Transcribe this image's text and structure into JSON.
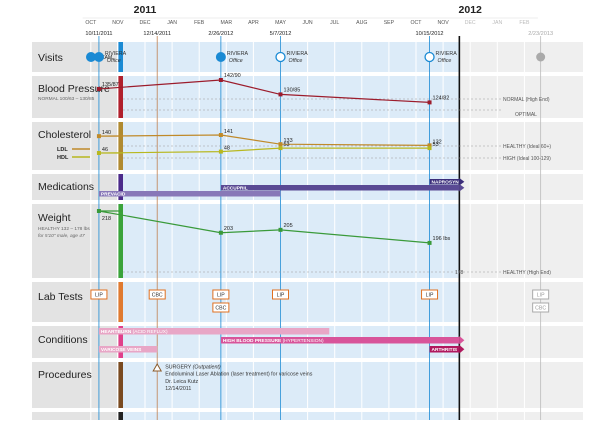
{
  "timeline": {
    "years": [
      {
        "label": "2011",
        "faded": false,
        "month": 0
      },
      {
        "label": "2012",
        "faded": false,
        "month": 12
      },
      {
        "label": "2013",
        "faded": true,
        "month": 24.3
      }
    ],
    "months": [
      {
        "label": "OCT",
        "m": -2
      },
      {
        "label": "NOV",
        "m": -1
      },
      {
        "label": "DEC",
        "m": 0
      },
      {
        "label": "JAN",
        "m": 1
      },
      {
        "label": "FEB",
        "m": 2
      },
      {
        "label": "MAR",
        "m": 3
      },
      {
        "label": "APR",
        "m": 4
      },
      {
        "label": "MAY",
        "m": 5
      },
      {
        "label": "JUN",
        "m": 6
      },
      {
        "label": "JUL",
        "m": 7
      },
      {
        "label": "AUG",
        "m": 8
      },
      {
        "label": "SEP",
        "m": 9
      },
      {
        "label": "OCT",
        "m": 10
      },
      {
        "label": "NOV",
        "m": 11
      },
      {
        "label": "DEC",
        "m": 12,
        "faded": true
      },
      {
        "label": "JAN",
        "m": 13,
        "faded": true
      },
      {
        "label": "FEB",
        "m": 14,
        "faded": true
      }
    ],
    "visit_dates": [
      {
        "label": "10/11/2011",
        "m": -1.7,
        "faded": false
      },
      {
        "label": "12/14/2011",
        "m": 0.45,
        "faded": false
      },
      {
        "label": "2/26/2012",
        "m": 2.8,
        "faded": false
      },
      {
        "label": "5/7/2012",
        "m": 5.0,
        "faded": false
      },
      {
        "label": "10/15/2012",
        "m": 10.5,
        "faded": false
      },
      {
        "label": "2/23/2013",
        "m": 14.6,
        "faded": true
      }
    ],
    "today_m": 11.6
  },
  "rows": {
    "visits": {
      "title": "Visits",
      "legend_label": "EXAM"
    },
    "bp": {
      "title": "Blood Pressure",
      "sub": "NORMAL 100/63 – 130/85"
    },
    "chol": {
      "title": "Cholesterol",
      "legend_ldl": "LDL",
      "legend_hdl": "HDL"
    },
    "meds": {
      "title": "Medications"
    },
    "weight": {
      "title": "Weight",
      "sub1": "HEALTHY 132 – 178 lbs",
      "sub2": "for 5'10\" male, age 47"
    },
    "lab": {
      "title": "Lab Tests"
    },
    "cond": {
      "title": "Conditions"
    },
    "proc": {
      "title": "Procedures"
    }
  },
  "visits": [
    {
      "m": -1.7,
      "type": "exam",
      "place": "RIVIERA",
      "sub": "Office"
    },
    {
      "m": 2.8,
      "type": "exam",
      "place": "RIVIERA",
      "sub": "Office"
    },
    {
      "m": 5.0,
      "type": "visit",
      "place": "RIVIERA",
      "sub": "Office"
    },
    {
      "m": 10.5,
      "type": "visit",
      "place": "RIVIERA",
      "sub": "Office"
    },
    {
      "m": 14.6,
      "type": "future"
    }
  ],
  "bp": {
    "points": [
      {
        "m": -1.7,
        "label": "135/87",
        "v": 0.72
      },
      {
        "m": 2.8,
        "label": "142/90",
        "v": 1.0
      },
      {
        "m": 5.0,
        "label": "130/85",
        "v": 0.55
      },
      {
        "m": 10.5,
        "label": "124/82",
        "v": 0.3
      }
    ],
    "ref_normal": "NORMAL (High End)",
    "ref_optimal": "OPTIMAL"
  },
  "chol": {
    "ldl": [
      {
        "m": -1.7,
        "label": "140",
        "v": 140
      },
      {
        "m": 2.8,
        "label": "141",
        "v": 141
      },
      {
        "m": 5.0,
        "label": "133",
        "v": 133
      },
      {
        "m": 10.5,
        "label": "132",
        "v": 132
      }
    ],
    "hdl": [
      {
        "m": -1.7,
        "label": "46",
        "v": 46
      },
      {
        "m": 2.8,
        "label": "48",
        "v": 48
      },
      {
        "m": 5.0,
        "label": "53",
        "v": 53
      },
      {
        "m": 10.5,
        "label": "53",
        "v": 53
      }
    ],
    "ref_healthy": "HEALTHY (Ideal 60+)",
    "ref_high": "HIGH (Ideal 100-129)"
  },
  "meds": [
    {
      "label": "NAPROSYN",
      "start": 10.5,
      "end": 11.6,
      "arrow": true,
      "color": "#3b2e7a"
    },
    {
      "label": "ACCUPRIL",
      "start": 2.8,
      "end": 11.6,
      "arrow": true,
      "color": "#5a4a94"
    },
    {
      "label": "PREVACID",
      "start": -1.7,
      "end": 5.0,
      "arrow": false,
      "color": "#8878b8"
    }
  ],
  "weight": {
    "points": [
      {
        "m": -1.7,
        "label": "218",
        "v": 218
      },
      {
        "m": 2.8,
        "label": "203",
        "v": 203
      },
      {
        "m": 5.0,
        "label": "205",
        "v": 205
      },
      {
        "m": 10.5,
        "label": "196 lbs",
        "v": 196
      }
    ],
    "ref_label": "178",
    "ref_text": "HEALTHY (High End)"
  },
  "labs": [
    {
      "m": -1.7,
      "label": "LIP",
      "slot": 0
    },
    {
      "m": 0.45,
      "label": "CBC",
      "slot": 0
    },
    {
      "m": 2.8,
      "label": "LIP",
      "slot": 0
    },
    {
      "m": 2.8,
      "label": "CBC",
      "slot": 1
    },
    {
      "m": 5.0,
      "label": "LIP",
      "slot": 0
    },
    {
      "m": 10.5,
      "label": "LIP",
      "slot": 0
    },
    {
      "m": 14.6,
      "label": "LIP",
      "slot": 0,
      "faded": true
    },
    {
      "m": 14.6,
      "label": "CBC",
      "slot": 1,
      "faded": true
    }
  ],
  "conditions": [
    {
      "label": "HEARTBURN",
      "note": " (ACID REFLUX)",
      "start": -1.7,
      "end": 6.8,
      "lane": 0,
      "color": "#e8a6c6",
      "arrow": false
    },
    {
      "label": "HIGH BLOOD PRESSURE",
      "note": " (HYPERTENSION)",
      "start": 2.8,
      "end": 11.6,
      "lane": 1,
      "color": "#d8549a",
      "arrow": true
    },
    {
      "label": "VARICOSE VEINS",
      "note": "",
      "start": -1.7,
      "end": 0.45,
      "lane": 2,
      "color": "#e8a6c6",
      "arrow": false
    },
    {
      "label": "ARTHRITIS",
      "note": "",
      "start": 10.5,
      "end": 11.6,
      "lane": 2,
      "color": "#b0185e",
      "arrow": true
    }
  ],
  "procedures": [
    {
      "m": 0.45,
      "lines": [
        "SURGERY (Outpatient)",
        "Endoluminal Laser Ablation (laser treatment) for varicose veins",
        "Dr. Leica Kutz",
        "12/14/2011"
      ]
    }
  ],
  "colors": {
    "row_label_bg": "#e3e3e3",
    "grid_bg": "#dcebf8",
    "future_bg": "#efefef",
    "visit_blue": "#1a8ad4",
    "proc_orange": "#8a5a2a",
    "bp": "#9c1c2c",
    "ldl": "#c08a2a",
    "hdl": "#b8b820",
    "weight": "#3a9a3a",
    "lab": "#e07020",
    "meds_bar": "#4a2e7a",
    "cond_bar": "#e0408a",
    "weight_bar": "#3aa33a",
    "chol_bar": "#b08a30",
    "bp_bar": "#b0202c",
    "lab_bar": "#e07a30",
    "proc_bar": "#7a4a20",
    "med_bar": "#4b2a8a",
    "text_dark": "#222222"
  }
}
